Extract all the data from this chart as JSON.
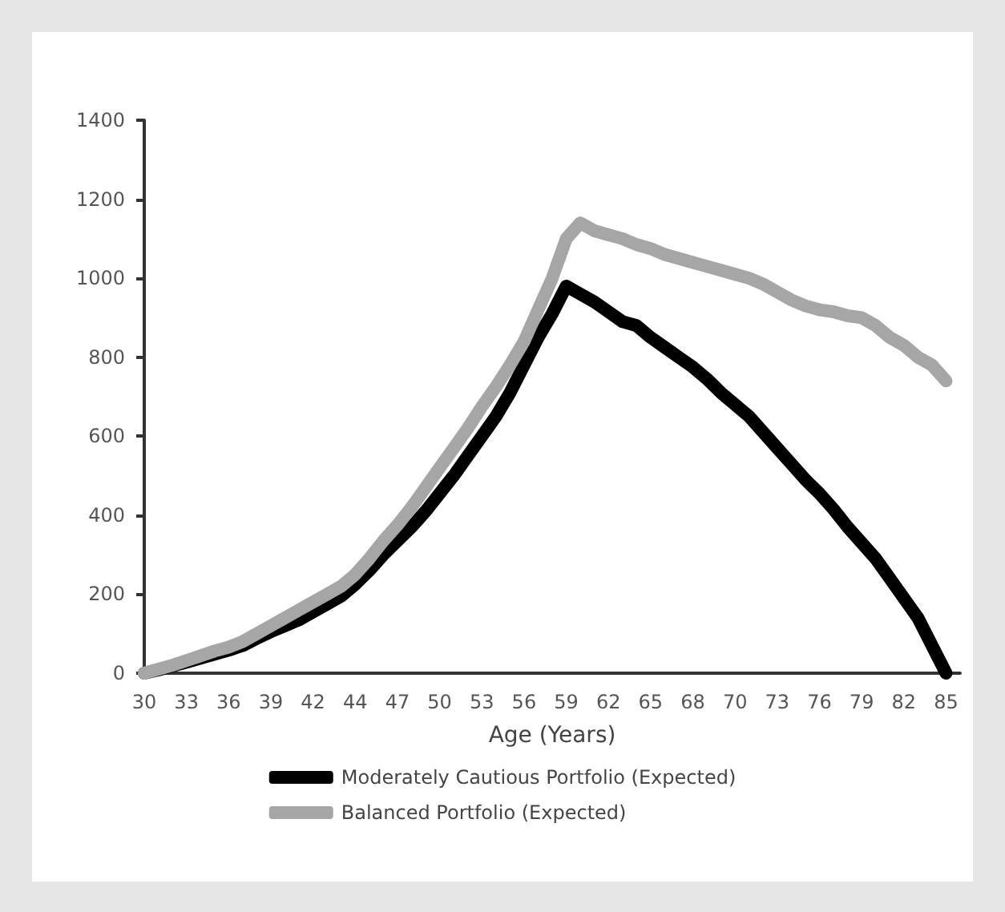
{
  "chart_data": {
    "type": "line",
    "xlabel": "Age (Years)",
    "categories": [
      "30",
      null,
      null,
      "33",
      null,
      null,
      "36",
      null,
      null,
      "39",
      null,
      null,
      "42",
      null,
      null,
      "44",
      null,
      null,
      "47",
      null,
      null,
      "50",
      null,
      null,
      "53",
      null,
      null,
      "56",
      null,
      null,
      "59",
      null,
      null,
      "62",
      null,
      null,
      "65",
      null,
      null,
      "68",
      null,
      null,
      "70",
      null,
      null,
      "73",
      null,
      null,
      "76",
      null,
      null,
      "79",
      null,
      null,
      "82",
      null,
      null,
      "85",
      null
    ],
    "series": [
      {
        "name": "Moderately Cautious Portfolio (Expected)",
        "color": "#000000",
        "values": [
          0,
          8,
          18,
          28,
          38,
          48,
          58,
          70,
          88,
          105,
          120,
          135,
          155,
          175,
          195,
          225,
          260,
          300,
          335,
          370,
          410,
          455,
          500,
          550,
          600,
          650,
          710,
          780,
          850,
          910,
          980,
          960,
          940,
          915,
          890,
          880,
          850,
          825,
          800,
          775,
          745,
          710,
          680,
          650,
          610,
          570,
          530,
          490,
          455,
          415,
          370,
          330,
          290,
          240,
          190,
          140,
          70,
          0,
          null
        ]
      },
      {
        "name": "Balanced Portfolio (Expected)",
        "color": "#a6a6a6",
        "values": [
          0,
          10,
          20,
          32,
          44,
          56,
          66,
          80,
          100,
          120,
          140,
          160,
          180,
          200,
          220,
          250,
          290,
          335,
          375,
          420,
          470,
          520,
          570,
          620,
          675,
          725,
          780,
          840,
          920,
          1000,
          1100,
          1140,
          1120,
          1110,
          1100,
          1085,
          1075,
          1060,
          1050,
          1040,
          1030,
          1020,
          1010,
          1000,
          985,
          965,
          945,
          930,
          920,
          915,
          905,
          900,
          880,
          850,
          830,
          800,
          780,
          740,
          null
        ]
      }
    ],
    "ylim": [
      0,
      1400
    ],
    "yticks": [
      0,
      200,
      400,
      600,
      800,
      1000,
      1200,
      1400
    ],
    "grid": false,
    "legend": "bottom",
    "marker": "none",
    "line_style": "solid"
  }
}
